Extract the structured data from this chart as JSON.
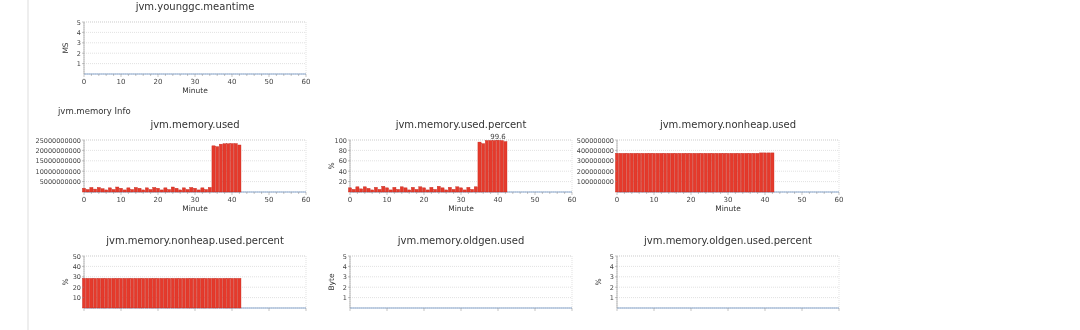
{
  "chart_data": [
    {
      "type": "bar",
      "title": "jvm.younggc.meantime",
      "xlabel": "Minute",
      "ylabel": "MS",
      "color": "#e53a2c",
      "xlim": [
        0,
        60
      ],
      "xticks": [
        0,
        {
          "value": 2,
          "label": null
        },
        {
          "value": 4,
          "label": null
        },
        {
          "value": 6,
          "label": null
        },
        {
          "value": 8,
          "label": null
        },
        10,
        {
          "value": 12,
          "label": null
        },
        {
          "value": 14,
          "label": null
        },
        {
          "value": 16,
          "label": null
        },
        {
          "value": 18,
          "label": null
        },
        20,
        {
          "value": 22,
          "label": null
        },
        {
          "value": 24,
          "label": null
        },
        {
          "value": 26,
          "label": null
        },
        {
          "value": 28,
          "label": null
        },
        30,
        {
          "value": 32,
          "label": null
        },
        {
          "value": 34,
          "label": null
        },
        {
          "value": 36,
          "label": null
        },
        {
          "value": 38,
          "label": null
        },
        40,
        {
          "value": 42,
          "label": null
        },
        {
          "value": 44,
          "label": null
        },
        {
          "value": 46,
          "label": null
        },
        {
          "value": 48,
          "label": null
        },
        50,
        {
          "value": 52,
          "label": null
        },
        {
          "value": 54,
          "label": null
        },
        {
          "value": 56,
          "label": null
        },
        {
          "value": 58,
          "label": null
        },
        60
      ],
      "ylim": [
        0,
        5
      ],
      "yticks": [
        1,
        2,
        3,
        4,
        5
      ],
      "grid": "y"
    },
    {
      "type": "bar",
      "title": "jvm.memory.used",
      "xlabel": "Minute",
      "annotations": [
        "jvm.memory Info"
      ],
      "x": [
        0,
        1,
        2,
        3,
        4,
        5,
        6,
        7,
        8,
        9,
        10,
        11,
        12,
        13,
        14,
        15,
        16,
        17,
        18,
        19,
        20,
        21,
        22,
        23,
        24,
        25,
        26,
        27,
        28,
        29,
        30,
        31,
        32,
        33,
        34,
        35,
        36,
        37,
        38,
        39,
        40,
        41,
        42
      ],
      "values": [
        1800000000,
        1200000000,
        2200000000,
        1400000000,
        2200000000,
        1600000000,
        1000000000,
        2000000000,
        1200000000,
        2400000000,
        1800000000,
        1000000000,
        2000000000,
        1200000000,
        2200000000,
        1800000000,
        1000000000,
        2000000000,
        1200000000,
        2200000000,
        1800000000,
        1000000000,
        2000000000,
        1200000000,
        2400000000,
        1800000000,
        1000000000,
        2000000000,
        1200000000,
        2200000000,
        1800000000,
        1000000000,
        2000000000,
        1200000000,
        2200000000,
        22200000000,
        21800000000,
        23000000000,
        23200000000,
        23200000000,
        23300000000,
        23300000000,
        22600000000
      ],
      "color": "#e53a2c",
      "xlim": [
        0,
        60
      ],
      "xticks": [
        0,
        {
          "value": 2,
          "label": null
        },
        {
          "value": 4,
          "label": null
        },
        {
          "value": 6,
          "label": null
        },
        {
          "value": 8,
          "label": null
        },
        10,
        {
          "value": 12,
          "label": null
        },
        {
          "value": 14,
          "label": null
        },
        {
          "value": 16,
          "label": null
        },
        {
          "value": 18,
          "label": null
        },
        20,
        {
          "value": 22,
          "label": null
        },
        {
          "value": 24,
          "label": null
        },
        {
          "value": 26,
          "label": null
        },
        {
          "value": 28,
          "label": null
        },
        30,
        {
          "value": 32,
          "label": null
        },
        {
          "value": 34,
          "label": null
        },
        {
          "value": 36,
          "label": null
        },
        {
          "value": 38,
          "label": null
        },
        40,
        {
          "value": 42,
          "label": null
        },
        {
          "value": 44,
          "label": null
        },
        {
          "value": 46,
          "label": null
        },
        {
          "value": 48,
          "label": null
        },
        50,
        {
          "value": 52,
          "label": null
        },
        {
          "value": 54,
          "label": null
        },
        {
          "value": 56,
          "label": null
        },
        {
          "value": 58,
          "label": null
        },
        60
      ],
      "ylim": [
        0,
        25000000000
      ],
      "yticks": [
        5000000000,
        10000000000,
        15000000000,
        20000000000,
        25000000000
      ],
      "grid": "y"
    },
    {
      "type": "bar",
      "title": "jvm.memory.used.percent",
      "xlabel": "Minute",
      "ylabel": "%",
      "x": [
        0,
        1,
        2,
        3,
        4,
        5,
        6,
        7,
        8,
        9,
        10,
        11,
        12,
        13,
        14,
        15,
        16,
        17,
        18,
        19,
        20,
        21,
        22,
        23,
        24,
        25,
        26,
        27,
        28,
        29,
        30,
        31,
        32,
        33,
        34,
        35,
        36,
        37,
        38,
        39,
        40,
        41,
        42
      ],
      "values": [
        8,
        5,
        10,
        6,
        10,
        7,
        4,
        9,
        5,
        11,
        8,
        4,
        9,
        5,
        10,
        8,
        4,
        9,
        5,
        10,
        8,
        4,
        9,
        5,
        11,
        8,
        4,
        9,
        5,
        10,
        8,
        4,
        9,
        5,
        10,
        96,
        93,
        99,
        99,
        99,
        99.6,
        99,
        97
      ],
      "value_labels": [
        null,
        null,
        null,
        null,
        null,
        null,
        null,
        null,
        null,
        null,
        null,
        null,
        null,
        null,
        null,
        null,
        null,
        null,
        null,
        null,
        null,
        null,
        null,
        null,
        null,
        null,
        null,
        null,
        null,
        null,
        null,
        null,
        null,
        null,
        null,
        null,
        null,
        null,
        null,
        null,
        "99.6",
        null,
        null
      ],
      "color": "#e53a2c",
      "xlim": [
        0,
        60
      ],
      "xticks": [
        0,
        {
          "value": 2,
          "label": null
        },
        {
          "value": 4,
          "label": null
        },
        {
          "value": 6,
          "label": null
        },
        {
          "value": 8,
          "label": null
        },
        10,
        {
          "value": 12,
          "label": null
        },
        {
          "value": 14,
          "label": null
        },
        {
          "value": 16,
          "label": null
        },
        {
          "value": 18,
          "label": null
        },
        20,
        {
          "value": 22,
          "label": null
        },
        {
          "value": 24,
          "label": null
        },
        {
          "value": 26,
          "label": null
        },
        {
          "value": 28,
          "label": null
        },
        30,
        {
          "value": 32,
          "label": null
        },
        {
          "value": 34,
          "label": null
        },
        {
          "value": 36,
          "label": null
        },
        {
          "value": 38,
          "label": null
        },
        40,
        {
          "value": 42,
          "label": null
        },
        {
          "value": 44,
          "label": null
        },
        {
          "value": 46,
          "label": null
        },
        {
          "value": 48,
          "label": null
        },
        50,
        {
          "value": 52,
          "label": null
        },
        {
          "value": 54,
          "label": null
        },
        {
          "value": 56,
          "label": null
        },
        {
          "value": 58,
          "label": null
        },
        60
      ],
      "ylim": [
        0,
        100
      ],
      "yticks": [
        20,
        40,
        60,
        80,
        100
      ],
      "grid": "y"
    },
    {
      "type": "bar",
      "title": "jvm.memory.nonheap.used",
      "xlabel": "Minute",
      "x": [
        0,
        1,
        2,
        3,
        4,
        5,
        6,
        7,
        8,
        9,
        10,
        11,
        12,
        13,
        14,
        15,
        16,
        17,
        18,
        19,
        20,
        21,
        22,
        23,
        24,
        25,
        26,
        27,
        28,
        29,
        30,
        31,
        32,
        33,
        34,
        35,
        36,
        37,
        38,
        39,
        40,
        41,
        42
      ],
      "values": [
        372000000,
        372000000,
        372000000,
        372000000,
        372000000,
        372000000,
        372000000,
        372000000,
        372000000,
        372000000,
        372000000,
        372000000,
        372000000,
        372000000,
        372000000,
        372000000,
        372000000,
        372000000,
        372000000,
        372000000,
        372000000,
        372000000,
        372000000,
        372000000,
        372000000,
        372000000,
        372000000,
        372000000,
        372000000,
        372000000,
        372000000,
        372000000,
        372000000,
        372000000,
        372000000,
        372000000,
        372000000,
        372000000,
        372000000,
        376000000,
        376000000,
        376000000,
        376000000
      ],
      "color": "#e53a2c",
      "xlim": [
        0,
        60
      ],
      "xticks": [
        0,
        {
          "value": 2,
          "label": null
        },
        {
          "value": 4,
          "label": null
        },
        {
          "value": 6,
          "label": null
        },
        {
          "value": 8,
          "label": null
        },
        10,
        {
          "value": 12,
          "label": null
        },
        {
          "value": 14,
          "label": null
        },
        {
          "value": 16,
          "label": null
        },
        {
          "value": 18,
          "label": null
        },
        20,
        {
          "value": 22,
          "label": null
        },
        {
          "value": 24,
          "label": null
        },
        {
          "value": 26,
          "label": null
        },
        {
          "value": 28,
          "label": null
        },
        30,
        {
          "value": 32,
          "label": null
        },
        {
          "value": 34,
          "label": null
        },
        {
          "value": 36,
          "label": null
        },
        {
          "value": 38,
          "label": null
        },
        40,
        {
          "value": 42,
          "label": null
        },
        {
          "value": 44,
          "label": null
        },
        {
          "value": 46,
          "label": null
        },
        {
          "value": 48,
          "label": null
        },
        50,
        {
          "value": 52,
          "label": null
        },
        {
          "value": 54,
          "label": null
        },
        {
          "value": 56,
          "label": null
        },
        {
          "value": 58,
          "label": null
        },
        60
      ],
      "ylim": [
        0,
        500000000
      ],
      "yticks": [
        100000000,
        200000000,
        300000000,
        400000000,
        500000000
      ],
      "grid": "y"
    },
    {
      "type": "bar",
      "title": "jvm.memory.nonheap.used.percent",
      "ylabel": "%",
      "x": [
        0,
        1,
        2,
        3,
        4,
        5,
        6,
        7,
        8,
        9,
        10,
        11,
        12,
        13,
        14,
        15,
        16,
        17,
        18,
        19,
        20,
        21,
        22,
        23,
        24,
        25,
        26,
        27,
        28,
        29,
        30,
        31,
        32,
        33,
        34,
        35,
        36,
        37,
        38,
        39,
        40,
        41,
        42
      ],
      "values": [
        28.5,
        28.5,
        28.5,
        28.5,
        28.5,
        28.5,
        28.5,
        28.5,
        28.5,
        28.5,
        28.5,
        28.5,
        28.5,
        28.5,
        28.5,
        28.5,
        28.5,
        28.5,
        28.5,
        28.5,
        28.5,
        28.5,
        28.5,
        28.5,
        28.5,
        28.5,
        28.5,
        28.5,
        28.5,
        28.5,
        28.5,
        28.5,
        28.5,
        28.5,
        28.5,
        28.5,
        28.5,
        28.5,
        28.5,
        28.5,
        28.5,
        28.5,
        28.5
      ],
      "color": "#e53a2c",
      "xlim": [
        0,
        60
      ],
      "xticks": [
        0,
        10,
        20,
        30,
        40,
        50,
        60
      ],
      "tick_labels": "y",
      "ylim": [
        0,
        50
      ],
      "yticks": [
        10,
        20,
        30,
        40,
        50
      ],
      "grid": "y"
    },
    {
      "type": "bar",
      "title": "jvm.memory.oldgen.used",
      "ylabel": "Byte",
      "color": "#e53a2c",
      "xlim": [
        0,
        60
      ],
      "xticks": [
        0,
        10,
        20,
        30,
        40,
        50,
        60
      ],
      "tick_labels": "y",
      "ylim": [
        0,
        5
      ],
      "yticks": [
        1,
        2,
        3,
        4,
        5
      ],
      "grid": "y"
    },
    {
      "type": "bar",
      "title": "jvm.memory.oldgen.used.percent",
      "ylabel": "%",
      "color": "#e53a2c",
      "xlim": [
        0,
        60
      ],
      "xticks": [
        0,
        10,
        20,
        30,
        40,
        50,
        60
      ],
      "tick_labels": "y",
      "ylim": [
        0,
        5
      ],
      "yticks": [
        1,
        2,
        3,
        4,
        5
      ],
      "grid": "y"
    }
  ]
}
